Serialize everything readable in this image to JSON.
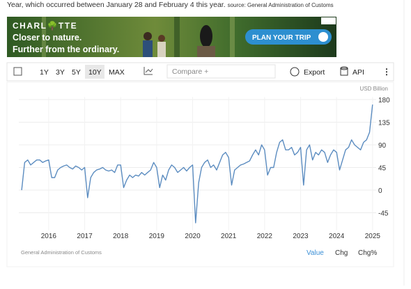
{
  "header": {
    "text": "Year, which occurred between January 28 and February 4 this year.",
    "source": "source: General Administration of Customs"
  },
  "ad": {
    "brand": "CHARL🌳TTE",
    "line1": "Closer to nature.",
    "line2": "Further from the ordinary.",
    "button": "PLAN YOUR TRIP"
  },
  "toolbar": {
    "ranges": [
      "1Y",
      "3Y",
      "5Y",
      "10Y",
      "MAX"
    ],
    "compare": "Compare +",
    "export": "Export",
    "api": "API"
  },
  "chart_data": {
    "type": "line",
    "y_label": "USD Billion",
    "x": [
      2015.25,
      2015.333,
      2015.417,
      2015.5,
      2015.583,
      2015.667,
      2015.75,
      2015.833,
      2015.917,
      2016,
      2016.083,
      2016.167,
      2016.25,
      2016.333,
      2016.417,
      2016.5,
      2016.583,
      2016.667,
      2016.75,
      2016.833,
      2016.917,
      2017,
      2017.083,
      2017.167,
      2017.25,
      2017.333,
      2017.417,
      2017.5,
      2017.583,
      2017.667,
      2017.75,
      2017.833,
      2017.917,
      2018,
      2018.083,
      2018.167,
      2018.25,
      2018.333,
      2018.417,
      2018.5,
      2018.583,
      2018.667,
      2018.75,
      2018.833,
      2018.917,
      2019,
      2019.083,
      2019.167,
      2019.25,
      2019.333,
      2019.417,
      2019.5,
      2019.583,
      2019.667,
      2019.75,
      2019.833,
      2019.917,
      2020,
      2020.083,
      2020.167,
      2020.25,
      2020.333,
      2020.417,
      2020.5,
      2020.583,
      2020.667,
      2020.75,
      2020.833,
      2020.917,
      2021,
      2021.083,
      2021.167,
      2021.25,
      2021.333,
      2021.417,
      2021.5,
      2021.583,
      2021.667,
      2021.75,
      2021.833,
      2021.917,
      2022,
      2022.083,
      2022.167,
      2022.25,
      2022.333,
      2022.417,
      2022.5,
      2022.583,
      2022.667,
      2022.75,
      2022.833,
      2022.917,
      2023,
      2023.083,
      2023.167,
      2023.25,
      2023.333,
      2023.417,
      2023.5,
      2023.583,
      2023.667,
      2023.75,
      2023.833,
      2023.917,
      2024,
      2024.083,
      2024.167,
      2024.25,
      2024.333,
      2024.417,
      2024.5,
      2024.583,
      2024.667,
      2024.75,
      2024.833,
      2024.917,
      2025
    ],
    "series": [
      {
        "name": "Value",
        "color": "#5b8cc0",
        "values": [
          0,
          55,
          60,
          50,
          55,
          60,
          60,
          55,
          58,
          60,
          25,
          25,
          40,
          45,
          48,
          50,
          45,
          42,
          48,
          45,
          40,
          45,
          -15,
          25,
          35,
          40,
          42,
          45,
          40,
          38,
          40,
          35,
          50,
          50,
          5,
          20,
          30,
          25,
          30,
          28,
          35,
          30,
          35,
          40,
          55,
          45,
          5,
          30,
          20,
          40,
          50,
          45,
          35,
          40,
          45,
          38,
          45,
          50,
          -65,
          15,
          45,
          55,
          60,
          45,
          50,
          40,
          55,
          70,
          75,
          65,
          10,
          40,
          45,
          50,
          52,
          55,
          58,
          70,
          80,
          70,
          90,
          80,
          30,
          45,
          45,
          75,
          95,
          100,
          80,
          80,
          85,
          70,
          75,
          85,
          10,
          80,
          90,
          60,
          75,
          70,
          80,
          75,
          55,
          70,
          80,
          75,
          40,
          60,
          80,
          85,
          100,
          90,
          85,
          80,
          95,
          100,
          115,
          170
        ]
      }
    ],
    "xlim": [
      2015.17,
      2025.1
    ],
    "ylim": [
      -80,
      185
    ],
    "xticks": [
      2016,
      2017,
      2018,
      2019,
      2020,
      2021,
      2022,
      2023,
      2024,
      2025
    ],
    "yticks": [
      -45,
      0,
      45,
      90,
      135,
      180
    ],
    "grid": true
  },
  "footer": {
    "source": "General Administration of Customs",
    "tabs": [
      "Value",
      "Chg",
      "Chg%"
    ]
  }
}
